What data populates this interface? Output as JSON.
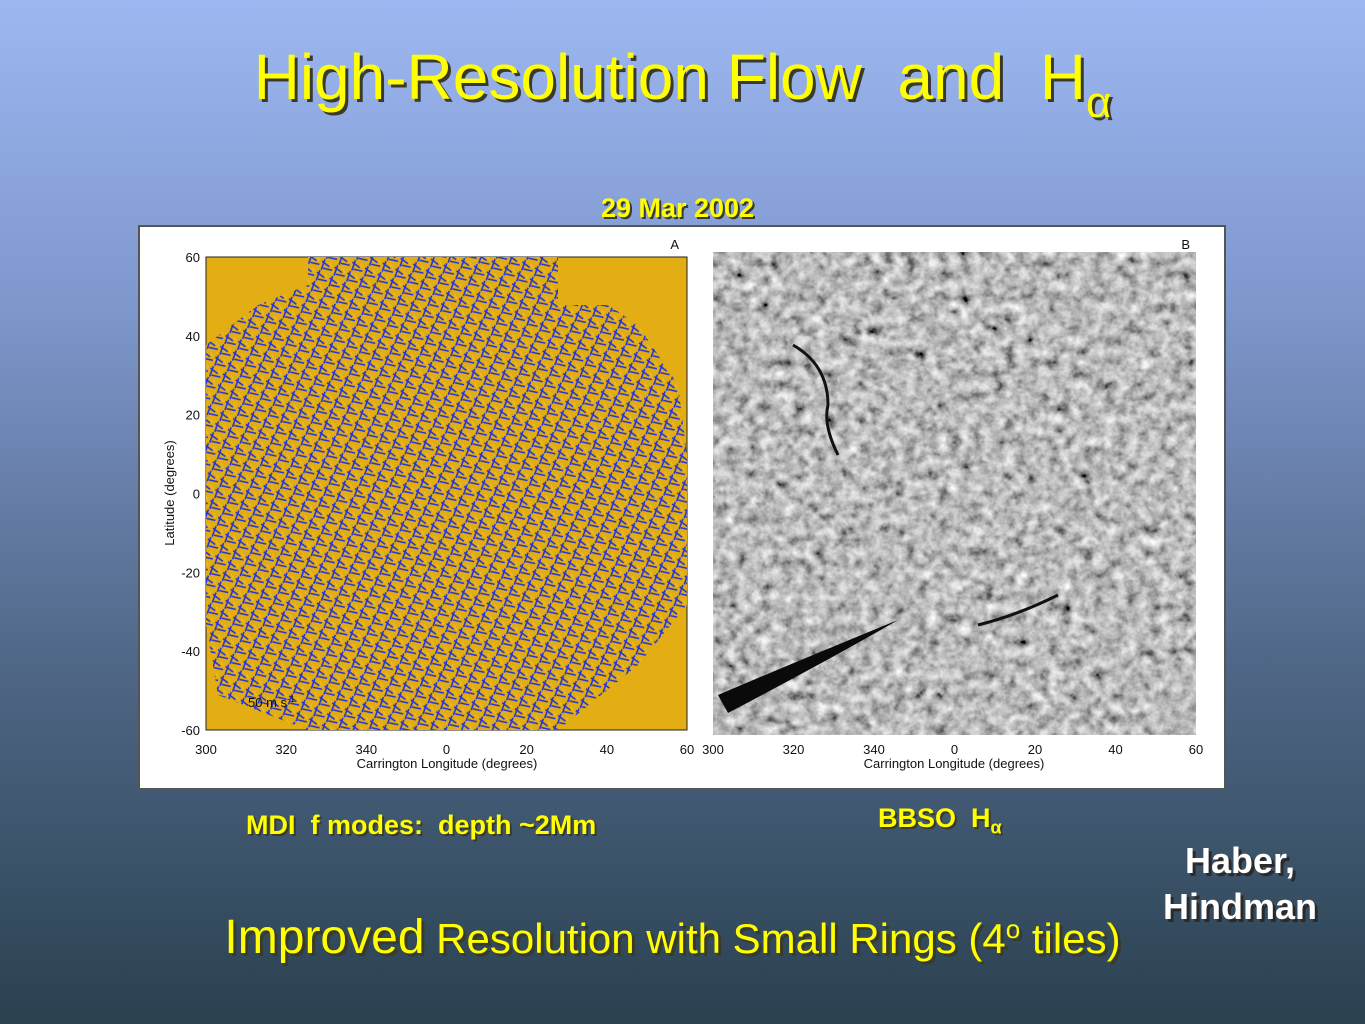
{
  "title": {
    "text": "High-Resolution Flow  and  H",
    "subscript": "α"
  },
  "date": "29 Mar 2002",
  "figure": {
    "y_label": "Latitude (degrees)",
    "y_ticks": [
      60,
      40,
      20,
      0,
      -20,
      -40,
      -60
    ],
    "x_label": "Carrington Longitude (degrees)",
    "x_ticks": [
      300,
      320,
      340,
      0,
      20,
      40,
      60
    ],
    "panel_a_label": "A",
    "panel_b_label": "B",
    "scale_text": "50 m s",
    "scale_sup": "-1"
  },
  "captions": {
    "left": "MDI  f modes:  depth ~2Mm",
    "right": {
      "text": "BBSO  H",
      "subscript": "α"
    }
  },
  "credit": [
    "Haber,",
    "Hindman"
  ],
  "footer": {
    "emphasis": "Improved",
    "text": " Resolution with Small Rings (4",
    "superscript": "o",
    "tail": " tiles)"
  }
}
